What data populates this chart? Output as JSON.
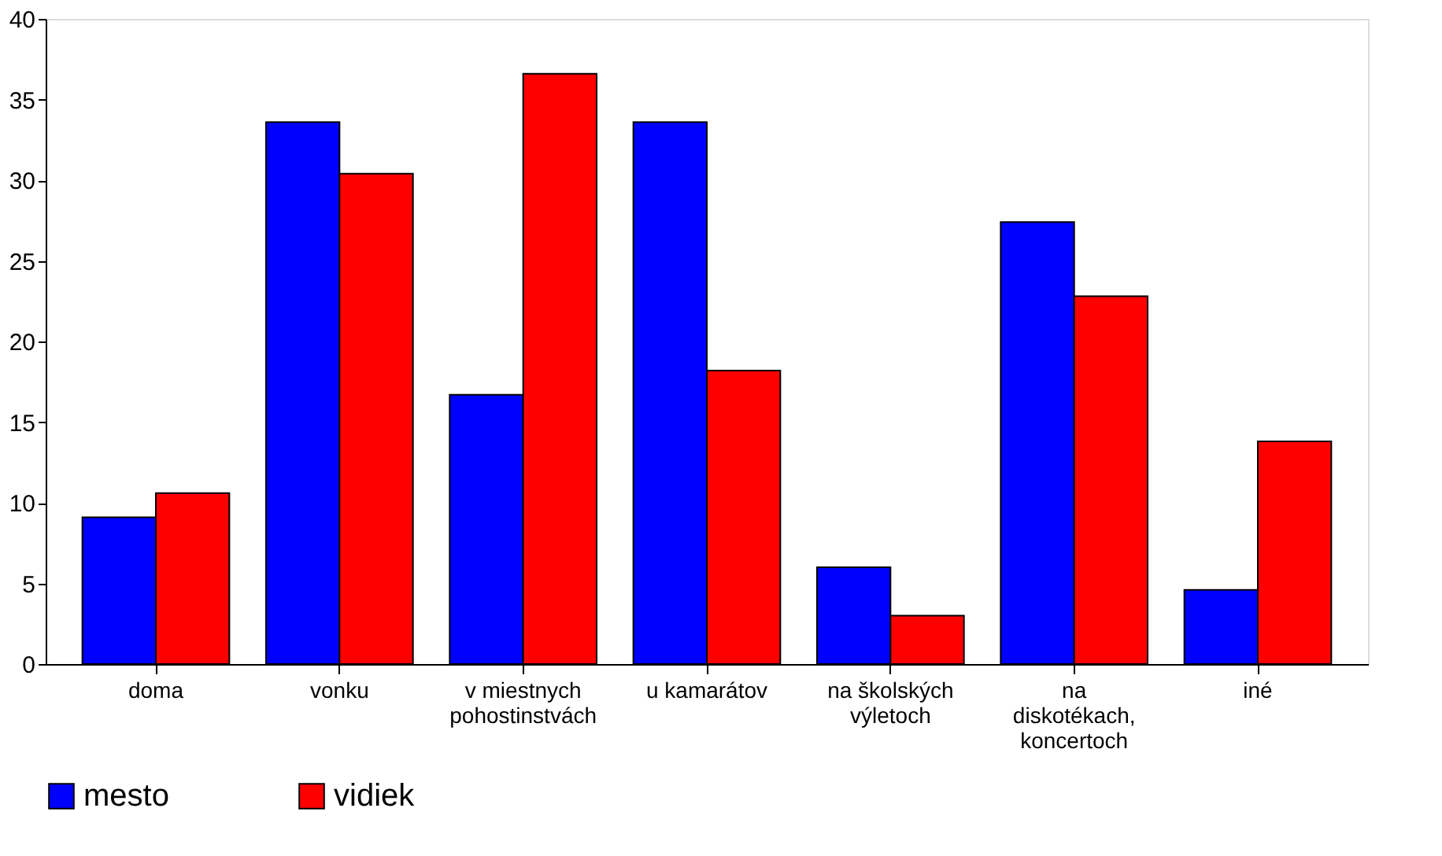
{
  "chart_data": {
    "type": "bar",
    "categories": [
      "doma",
      "vonku",
      "v miestnych\npohostinstvách",
      "u kamarátov",
      "na školských\nvýletoch",
      "na\ndiskotékach,\nkoncertoch",
      "iné"
    ],
    "series": [
      {
        "name": "mesto",
        "color": "#0000ff",
        "values": [
          9.1,
          33.6,
          16.7,
          33.6,
          6.0,
          27.4,
          4.6
        ]
      },
      {
        "name": "vidiek",
        "color": "#ff0000",
        "values": [
          10.6,
          30.4,
          36.6,
          18.2,
          3.0,
          22.8,
          13.8
        ]
      }
    ],
    "ylim": [
      0,
      40
    ],
    "yticks": [
      0,
      5,
      10,
      15,
      20,
      25,
      30,
      35,
      40
    ],
    "grid": false,
    "legend": "bottom"
  }
}
